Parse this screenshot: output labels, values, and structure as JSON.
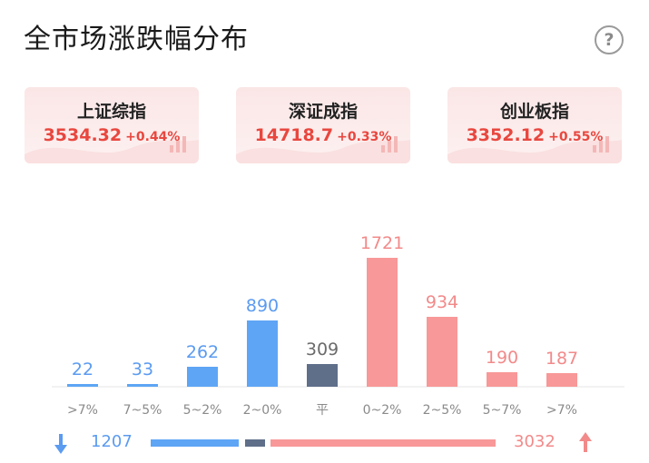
{
  "header": {
    "title": "全市场涨跌幅分布",
    "help_icon": "question-circle-icon",
    "help_glyph": "?"
  },
  "indices": [
    {
      "name": "上证综指",
      "price": "3534.32",
      "change": "+0.44%"
    },
    {
      "name": "深证成指",
      "price": "14718.7",
      "change": "+0.33%"
    },
    {
      "name": "创业板指",
      "price": "3352.12",
      "change": "+0.55%"
    }
  ],
  "colors": {
    "down": "#5ea5f5",
    "flat": "#5f6f8a",
    "up": "#f89898",
    "down_text": "#5b9bf0",
    "up_text": "#f28a8a",
    "flat_text": "#6b6b6b",
    "card_text": "#e8473f"
  },
  "chart_data": {
    "type": "bar",
    "categories": [
      ">7%",
      "7~5%",
      "5~2%",
      "2~0%",
      "平",
      "0~2%",
      "2~5%",
      "5~7%",
      ">7%"
    ],
    "values": [
      22,
      33,
      262,
      890,
      309,
      1721,
      934,
      190,
      187
    ],
    "groups": [
      "down",
      "down",
      "down",
      "down",
      "flat",
      "up",
      "up",
      "up",
      "up"
    ],
    "xlabel": "",
    "ylabel": "",
    "grid": false,
    "ylim": [
      0,
      1721
    ]
  },
  "summary": {
    "down_count": "1207",
    "up_count": "3032",
    "down_icon": "arrow-down-icon",
    "up_icon": "arrow-up-icon"
  }
}
